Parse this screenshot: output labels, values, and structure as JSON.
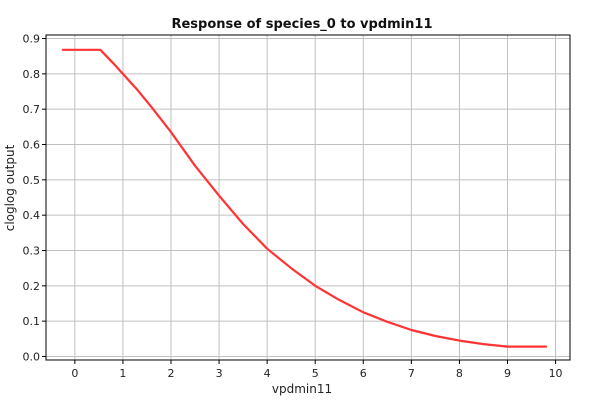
{
  "chart_data": {
    "type": "line",
    "title": "Response of species_0 to vpdmin11",
    "xlabel": "vpdmin11",
    "ylabel": "cloglog output",
    "xlim": [
      -0.6,
      10.3
    ],
    "ylim": [
      -0.01,
      0.91
    ],
    "xticks": [
      0,
      1,
      2,
      3,
      4,
      5,
      6,
      7,
      8,
      9,
      10
    ],
    "yticks": [
      0.0,
      0.1,
      0.2,
      0.3,
      0.4,
      0.5,
      0.6,
      0.7,
      0.8,
      0.9
    ],
    "ytick_labels": [
      "0.0",
      "0.1",
      "0.2",
      "0.3",
      "0.4",
      "0.5",
      "0.6",
      "0.7",
      "0.8",
      "0.9"
    ],
    "grid": true,
    "line_color": "#ff3333",
    "grid_color": "#c0c0c0",
    "series": [
      {
        "x": [
          -0.25,
          0.0,
          0.25,
          0.53,
          0.8,
          1.0,
          1.3,
          1.6,
          2.0,
          2.5,
          3.0,
          3.5,
          4.0,
          4.5,
          5.0,
          5.5,
          6.0,
          6.5,
          7.0,
          7.5,
          8.0,
          8.5,
          9.0,
          9.4,
          9.8
        ],
        "y": [
          0.868,
          0.868,
          0.868,
          0.868,
          0.83,
          0.8,
          0.755,
          0.705,
          0.635,
          0.54,
          0.455,
          0.375,
          0.305,
          0.25,
          0.2,
          0.16,
          0.125,
          0.098,
          0.075,
          0.058,
          0.045,
          0.035,
          0.028,
          0.028,
          0.028
        ]
      }
    ]
  }
}
